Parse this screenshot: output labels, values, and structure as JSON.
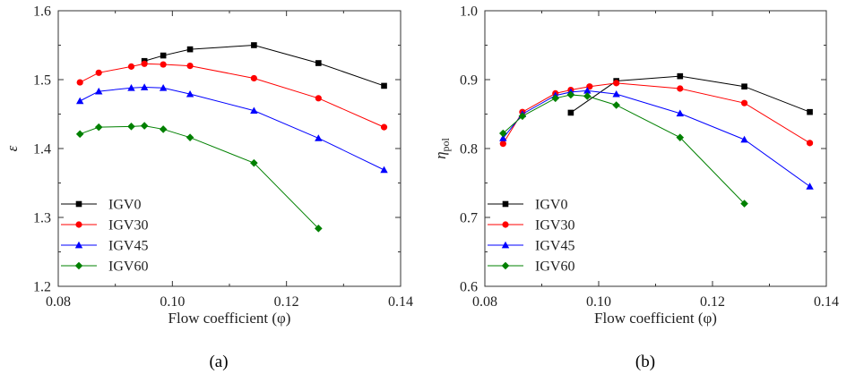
{
  "figure": {
    "panel_a_label": "(a)",
    "panel_b_label": "(b)"
  },
  "chart_data": [
    {
      "type": "line",
      "panel": "a",
      "title": "",
      "xlabel": "Flow coefficient (φ)",
      "ylabel": "ε",
      "xlim": [
        0.08,
        0.14
      ],
      "ylim": [
        1.2,
        1.6
      ],
      "xticks": [
        0.08,
        0.1,
        0.12,
        0.14
      ],
      "xtick_labels": [
        "0.08",
        "0.10",
        "0.12",
        "0.14"
      ],
      "yticks": [
        1.2,
        1.3,
        1.4,
        1.5,
        1.6
      ],
      "ytick_labels": [
        "1.2",
        "1.3",
        "1.4",
        "1.5",
        "1.6"
      ],
      "grid": false,
      "legend_position": "bottom-left",
      "series": [
        {
          "name": "IGV0",
          "color": "#000000",
          "marker": "square",
          "x": [
            0.0951,
            0.0984,
            0.1031,
            0.1143,
            0.1256,
            0.1371
          ],
          "y": [
            1.527,
            1.535,
            1.544,
            1.55,
            1.524,
            1.491
          ]
        },
        {
          "name": "IGV30",
          "color": "#ff0000",
          "marker": "circle",
          "x": [
            0.0838,
            0.0871,
            0.0928,
            0.0951,
            0.0984,
            0.1031,
            0.1143,
            0.1256,
            0.1371
          ],
          "y": [
            1.496,
            1.51,
            1.519,
            1.523,
            1.522,
            1.52,
            1.502,
            1.473,
            1.431
          ]
        },
        {
          "name": "IGV45",
          "color": "#0000ff",
          "marker": "triangle",
          "x": [
            0.0838,
            0.0871,
            0.0928,
            0.0951,
            0.0984,
            0.1031,
            0.1143,
            0.1256,
            0.1371
          ],
          "y": [
            1.469,
            1.483,
            1.488,
            1.489,
            1.488,
            1.479,
            1.455,
            1.415,
            1.369
          ]
        },
        {
          "name": "IGV60",
          "color": "#008000",
          "marker": "diamond",
          "x": [
            0.0838,
            0.0871,
            0.0928,
            0.0951,
            0.0984,
            0.1031,
            0.1143,
            0.1256
          ],
          "y": [
            1.421,
            1.431,
            1.432,
            1.433,
            1.428,
            1.416,
            1.379,
            1.284
          ]
        }
      ]
    },
    {
      "type": "line",
      "panel": "b",
      "title": "",
      "xlabel": "Flow coefficient (φ)",
      "ylabel_main": "η",
      "ylabel_sub": "pol",
      "xlim": [
        0.08,
        0.14
      ],
      "ylim": [
        0.6,
        1.0
      ],
      "xticks": [
        0.08,
        0.1,
        0.12,
        0.14
      ],
      "xtick_labels": [
        "0.08",
        "0.10",
        "0.12",
        "0.14"
      ],
      "yticks": [
        0.6,
        0.7,
        0.8,
        0.9,
        1.0
      ],
      "ytick_labels": [
        "0.6",
        "0.7",
        "0.8",
        "0.9",
        "1.0"
      ],
      "grid": false,
      "legend_position": "bottom-left",
      "series": [
        {
          "name": "IGV0",
          "color": "#000000",
          "marker": "square",
          "x": [
            0.0951,
            0.1031,
            0.1143,
            0.1256,
            0.1371
          ],
          "y": [
            0.852,
            0.898,
            0.905,
            0.89,
            0.853
          ]
        },
        {
          "name": "IGV30",
          "color": "#ff0000",
          "marker": "circle",
          "x": [
            0.0832,
            0.0866,
            0.0924,
            0.0951,
            0.0984,
            0.1031,
            0.1143,
            0.1256,
            0.1371
          ],
          "y": [
            0.807,
            0.853,
            0.88,
            0.885,
            0.89,
            0.895,
            0.887,
            0.866,
            0.808
          ]
        },
        {
          "name": "IGV45",
          "color": "#0000ff",
          "marker": "triangle",
          "x": [
            0.0832,
            0.0866,
            0.0924,
            0.0951,
            0.098,
            0.1031,
            0.1143,
            0.1256,
            0.1371
          ],
          "y": [
            0.815,
            0.85,
            0.877,
            0.882,
            0.884,
            0.879,
            0.851,
            0.813,
            0.745
          ]
        },
        {
          "name": "IGV60",
          "color": "#008000",
          "marker": "diamond",
          "x": [
            0.0832,
            0.0866,
            0.0924,
            0.0951,
            0.098,
            0.1031,
            0.1143,
            0.1256
          ],
          "y": [
            0.822,
            0.847,
            0.873,
            0.878,
            0.876,
            0.863,
            0.816,
            0.72
          ]
        }
      ]
    }
  ]
}
